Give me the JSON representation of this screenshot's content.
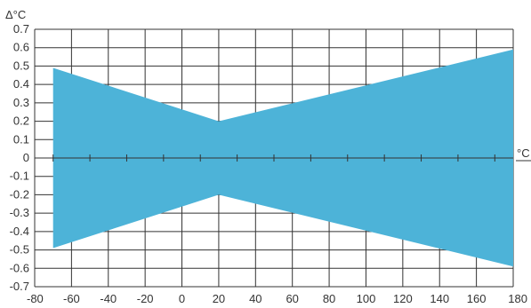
{
  "chart_data": {
    "type": "area",
    "title": "",
    "xlabel": "°C",
    "ylabel": "Δ°C",
    "xlim": [
      -80,
      180
    ],
    "ylim": [
      -0.7,
      0.7
    ],
    "x_ticks": [
      "-80",
      "-60",
      "-40",
      "-20",
      "0",
      "20",
      "40",
      "60",
      "80",
      "100",
      "120",
      "140",
      "160",
      "180"
    ],
    "y_ticks": [
      "0.7",
      "0.6",
      "0.5",
      "0.4",
      "0.3",
      "0.2",
      "0.1",
      "0",
      "-0.1",
      "-0.2",
      "-0.3",
      "-0.4",
      "-0.5",
      "-0.6",
      "-0.7"
    ],
    "grid": true,
    "series": [
      {
        "upper": [
          [
            -70,
            0.49
          ],
          [
            20,
            0.2
          ],
          [
            180,
            0.59
          ]
        ],
        "lower": [
          [
            -70,
            -0.49
          ],
          [
            20,
            -0.2
          ],
          [
            180,
            -0.59
          ]
        ]
      }
    ],
    "colors": {
      "fill": "#4db3d8",
      "grid": "#333333",
      "axis": "#333333"
    }
  }
}
